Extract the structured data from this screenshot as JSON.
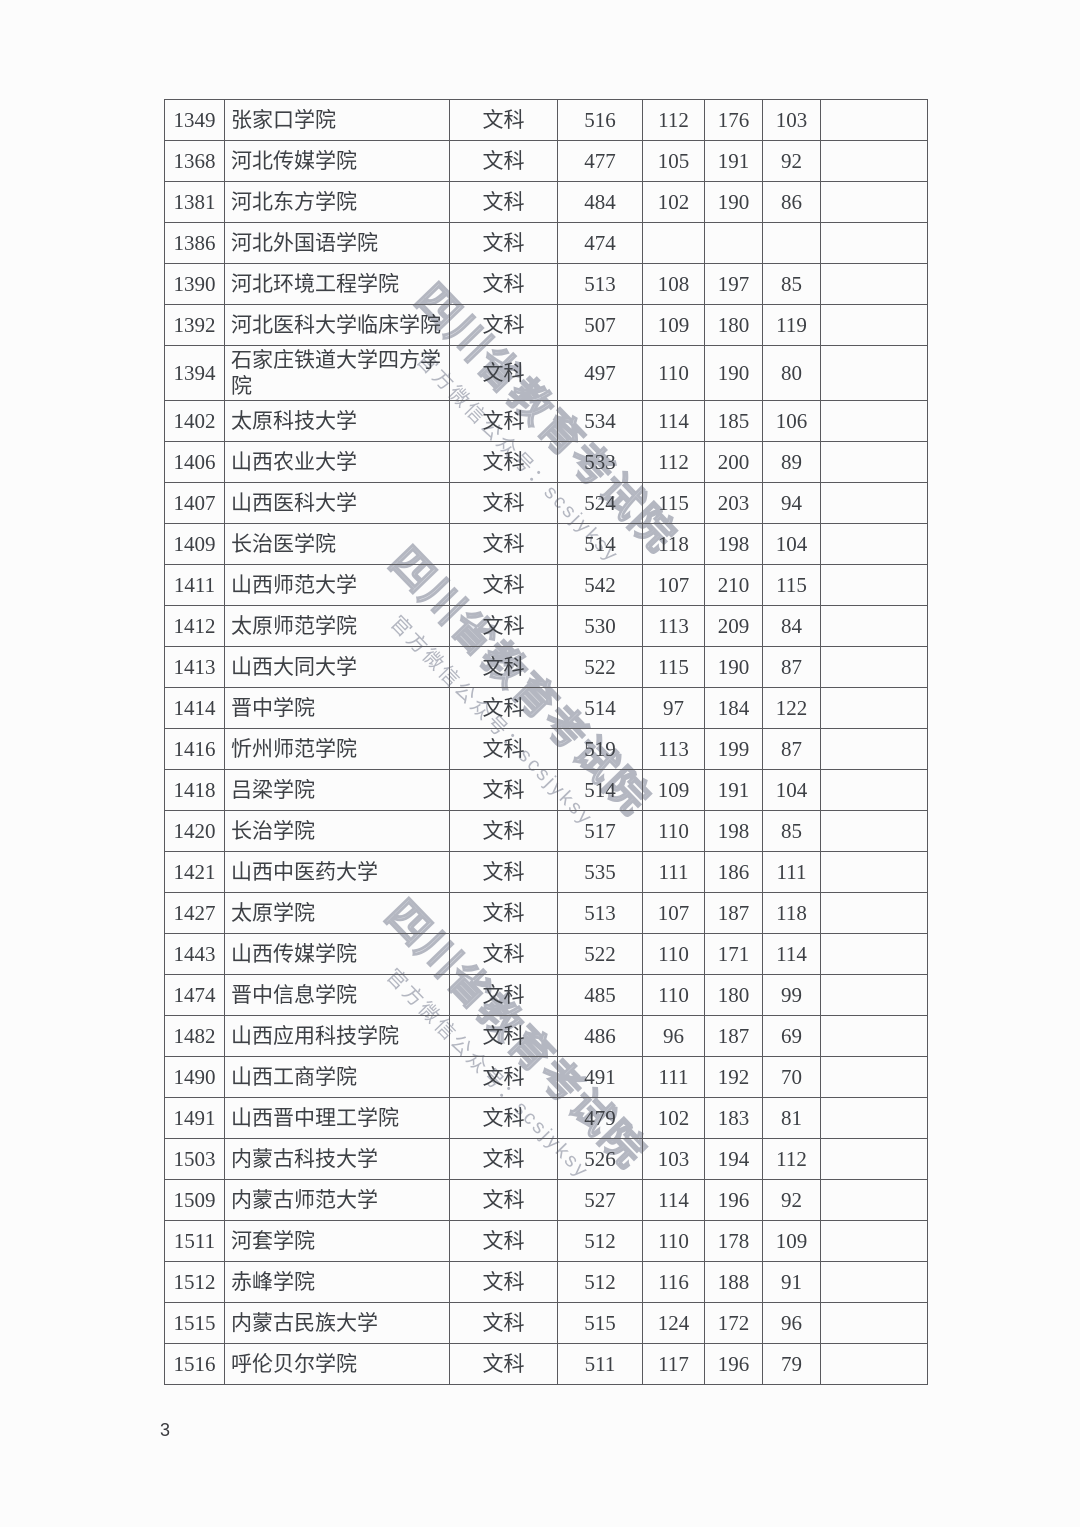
{
  "page": {
    "number": "3"
  },
  "colors": {
    "background": "#fcfcfc",
    "text": "#3d4045",
    "table_border": "#5a5a5e",
    "watermark": "#b4b7c1"
  },
  "watermark": {
    "line1": "四川省教育考试院",
    "line2": "官方微信公众号：scsjyksy"
  },
  "table": {
    "rows": [
      {
        "code": "1349",
        "school": "张家口学院",
        "subject": "文科",
        "total": "516",
        "score1": "112",
        "score2": "176",
        "score3": "103",
        "note": ""
      },
      {
        "code": "1368",
        "school": "河北传媒学院",
        "subject": "文科",
        "total": "477",
        "score1": "105",
        "score2": "191",
        "score3": "92",
        "note": ""
      },
      {
        "code": "1381",
        "school": "河北东方学院",
        "subject": "文科",
        "total": "484",
        "score1": "102",
        "score2": "190",
        "score3": "86",
        "note": ""
      },
      {
        "code": "1386",
        "school": "河北外国语学院",
        "subject": "文科",
        "total": "474",
        "score1": "",
        "score2": "",
        "score3": "",
        "note": ""
      },
      {
        "code": "1390",
        "school": "河北环境工程学院",
        "subject": "文科",
        "total": "513",
        "score1": "108",
        "score2": "197",
        "score3": "85",
        "note": ""
      },
      {
        "code": "1392",
        "school": "河北医科大学临床学院",
        "subject": "文科",
        "total": "507",
        "score1": "109",
        "score2": "180",
        "score3": "119",
        "note": ""
      },
      {
        "code": "1394",
        "school": "石家庄铁道大学四方学院",
        "subject": "文科",
        "total": "497",
        "score1": "110",
        "score2": "190",
        "score3": "80",
        "note": ""
      },
      {
        "code": "1402",
        "school": "太原科技大学",
        "subject": "文科",
        "total": "534",
        "score1": "114",
        "score2": "185",
        "score3": "106",
        "note": ""
      },
      {
        "code": "1406",
        "school": "山西农业大学",
        "subject": "文科",
        "total": "533",
        "score1": "112",
        "score2": "200",
        "score3": "89",
        "note": ""
      },
      {
        "code": "1407",
        "school": "山西医科大学",
        "subject": "文科",
        "total": "524",
        "score1": "115",
        "score2": "203",
        "score3": "94",
        "note": ""
      },
      {
        "code": "1409",
        "school": "长治医学院",
        "subject": "文科",
        "total": "514",
        "score1": "118",
        "score2": "198",
        "score3": "104",
        "note": ""
      },
      {
        "code": "1411",
        "school": "山西师范大学",
        "subject": "文科",
        "total": "542",
        "score1": "107",
        "score2": "210",
        "score3": "115",
        "note": ""
      },
      {
        "code": "1412",
        "school": "太原师范学院",
        "subject": "文科",
        "total": "530",
        "score1": "113",
        "score2": "209",
        "score3": "84",
        "note": ""
      },
      {
        "code": "1413",
        "school": "山西大同大学",
        "subject": "文科",
        "total": "522",
        "score1": "115",
        "score2": "190",
        "score3": "87",
        "note": ""
      },
      {
        "code": "1414",
        "school": "晋中学院",
        "subject": "文科",
        "total": "514",
        "score1": "97",
        "score2": "184",
        "score3": "122",
        "note": ""
      },
      {
        "code": "1416",
        "school": "忻州师范学院",
        "subject": "文科",
        "total": "519",
        "score1": "113",
        "score2": "199",
        "score3": "87",
        "note": ""
      },
      {
        "code": "1418",
        "school": "吕梁学院",
        "subject": "文科",
        "total": "514",
        "score1": "109",
        "score2": "191",
        "score3": "104",
        "note": ""
      },
      {
        "code": "1420",
        "school": "长治学院",
        "subject": "文科",
        "total": "517",
        "score1": "110",
        "score2": "198",
        "score3": "85",
        "note": ""
      },
      {
        "code": "1421",
        "school": "山西中医药大学",
        "subject": "文科",
        "total": "535",
        "score1": "111",
        "score2": "186",
        "score3": "111",
        "note": ""
      },
      {
        "code": "1427",
        "school": "太原学院",
        "subject": "文科",
        "total": "513",
        "score1": "107",
        "score2": "187",
        "score3": "118",
        "note": ""
      },
      {
        "code": "1443",
        "school": "山西传媒学院",
        "subject": "文科",
        "total": "522",
        "score1": "110",
        "score2": "171",
        "score3": "114",
        "note": ""
      },
      {
        "code": "1474",
        "school": "晋中信息学院",
        "subject": "文科",
        "total": "485",
        "score1": "110",
        "score2": "180",
        "score3": "99",
        "note": ""
      },
      {
        "code": "1482",
        "school": "山西应用科技学院",
        "subject": "文科",
        "total": "486",
        "score1": "96",
        "score2": "187",
        "score3": "69",
        "note": ""
      },
      {
        "code": "1490",
        "school": "山西工商学院",
        "subject": "文科",
        "total": "491",
        "score1": "111",
        "score2": "192",
        "score3": "70",
        "note": ""
      },
      {
        "code": "1491",
        "school": "山西晋中理工学院",
        "subject": "文科",
        "total": "479",
        "score1": "102",
        "score2": "183",
        "score3": "81",
        "note": ""
      },
      {
        "code": "1503",
        "school": "内蒙古科技大学",
        "subject": "文科",
        "total": "526",
        "score1": "103",
        "score2": "194",
        "score3": "112",
        "note": ""
      },
      {
        "code": "1509",
        "school": "内蒙古师范大学",
        "subject": "文科",
        "total": "527",
        "score1": "114",
        "score2": "196",
        "score3": "92",
        "note": ""
      },
      {
        "code": "1511",
        "school": "河套学院",
        "subject": "文科",
        "total": "512",
        "score1": "110",
        "score2": "178",
        "score3": "109",
        "note": ""
      },
      {
        "code": "1512",
        "school": "赤峰学院",
        "subject": "文科",
        "total": "512",
        "score1": "116",
        "score2": "188",
        "score3": "91",
        "note": ""
      },
      {
        "code": "1515",
        "school": "内蒙古民族大学",
        "subject": "文科",
        "total": "515",
        "score1": "124",
        "score2": "172",
        "score3": "96",
        "note": ""
      },
      {
        "code": "1516",
        "school": "呼伦贝尔学院",
        "subject": "文科",
        "total": "511",
        "score1": "117",
        "score2": "196",
        "score3": "79",
        "note": ""
      }
    ]
  }
}
